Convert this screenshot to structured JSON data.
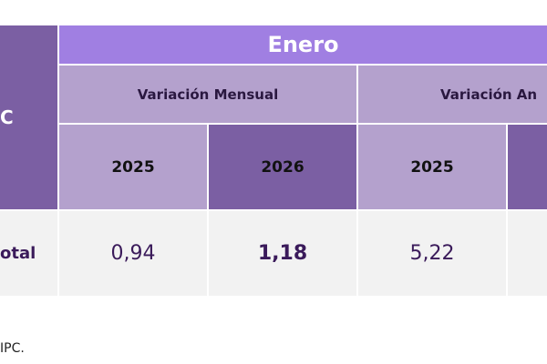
{
  "table": {
    "corner": "C",
    "month": "Enero",
    "groups": [
      "Variación Mensual",
      "Variación An"
    ],
    "years": [
      "2025",
      "2026",
      "2025"
    ],
    "rows": [
      [
        "otal",
        "0,94",
        "1,18",
        "5,22"
      ]
    ]
  },
  "footer": "IPC."
}
